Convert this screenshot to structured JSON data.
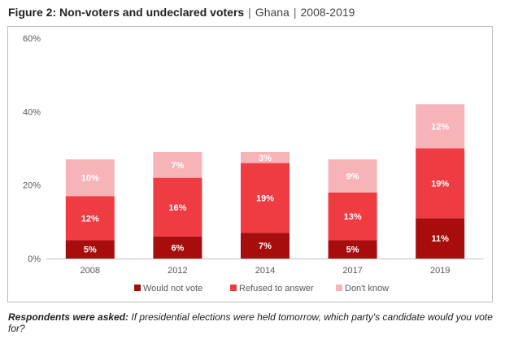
{
  "figure": {
    "title_lead": "Figure 2: Non-voters and undeclared voters",
    "separator": "|",
    "country": "Ghana",
    "period": "2008-2019"
  },
  "chart_data": {
    "type": "bar",
    "stacked": true,
    "categories": [
      "2008",
      "2012",
      "2014",
      "2017",
      "2019"
    ],
    "series": [
      {
        "name": "Would not vote",
        "values": [
          5,
          6,
          7,
          5,
          11
        ],
        "labels": [
          "5%",
          "6%",
          "7%",
          "5%",
          "11%"
        ],
        "color": "#a80d0d"
      },
      {
        "name": "Refused to answer",
        "values": [
          12,
          16,
          19,
          13,
          19
        ],
        "labels": [
          "12%",
          "16%",
          "19%",
          "13%",
          "19%"
        ],
        "color": "#ef3b42"
      },
      {
        "name": "Don't know",
        "values": [
          10,
          7,
          3,
          9,
          12
        ],
        "labels": [
          "10%",
          "7%",
          "3%",
          "9%",
          "12%"
        ],
        "color": "#f7b4b8"
      }
    ],
    "ylim": [
      0,
      60
    ],
    "yticks": [
      0,
      20,
      40,
      60
    ],
    "ytick_labels": [
      "0%",
      "20%",
      "40%",
      "60%"
    ],
    "grid": false,
    "legend_position": "bottom",
    "xlabel": "",
    "ylabel": ""
  },
  "footnote": {
    "label": "Respondents were asked:",
    "question": "If presidential elections were held tomorrow, which party's candidate would you vote for?"
  }
}
